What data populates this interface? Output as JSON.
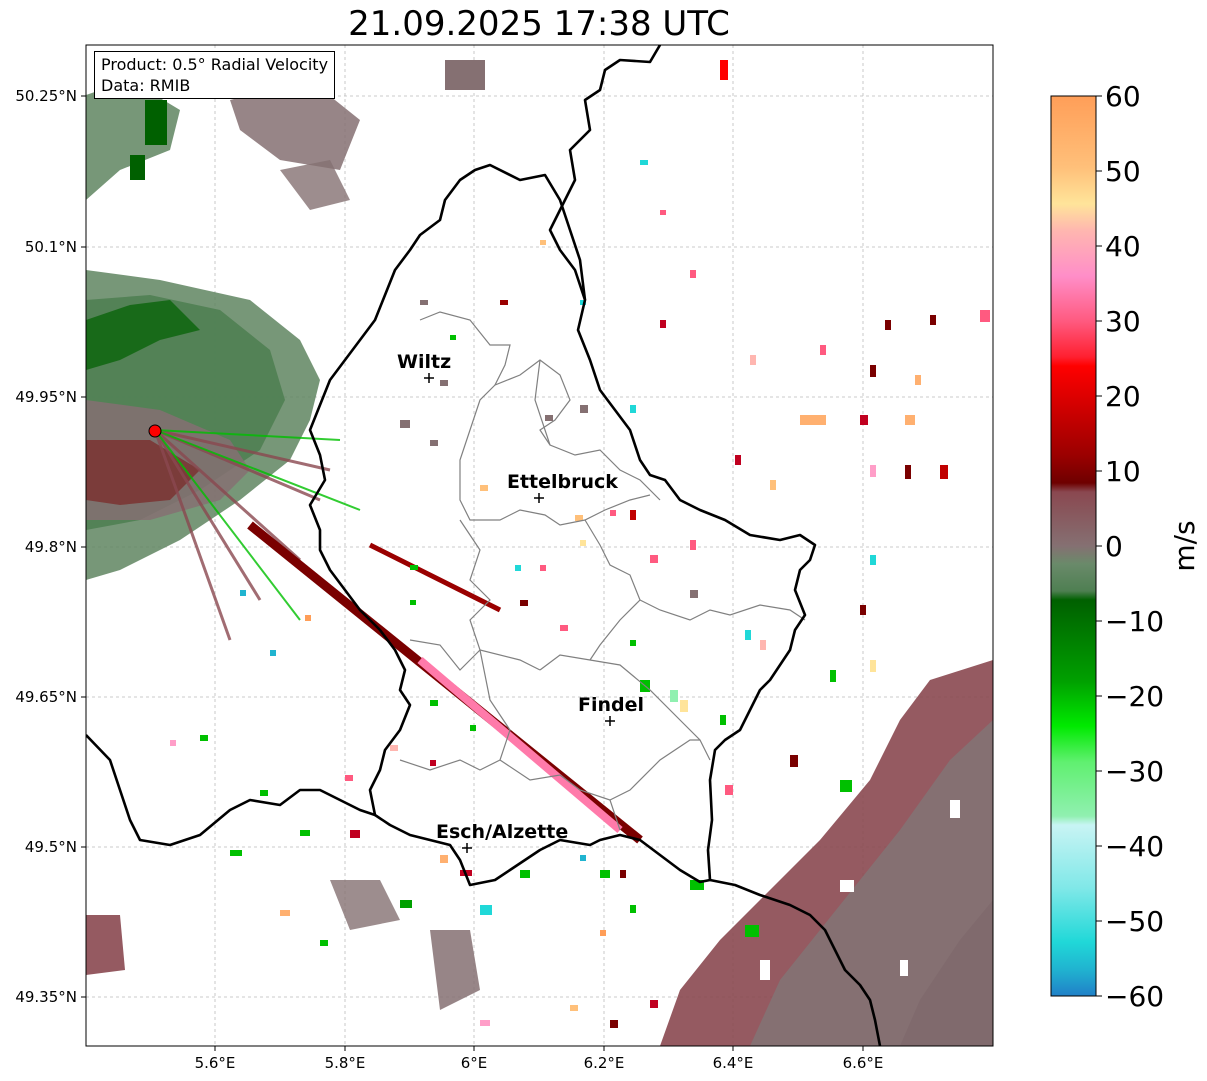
{
  "title": "21.09.2025 17:38 UTC",
  "info": {
    "product": "Product: 0.5° Radial Velocity",
    "source": "Data: RMIB"
  },
  "axes": {
    "lon_ticks": [
      "5.6°E",
      "5.8°E",
      "6°E",
      "6.2°E",
      "6.4°E",
      "6.6°E"
    ],
    "lat_ticks": [
      "50.25°N",
      "50.1°N",
      "49.95°N",
      "49.8°N",
      "49.65°N",
      "49.5°N",
      "49.35°N"
    ]
  },
  "cities": [
    {
      "name": "Wiltz"
    },
    {
      "name": "Ettelbruck"
    },
    {
      "name": "Findel"
    },
    {
      "name": "Esch/Alzette"
    }
  ],
  "colorbar": {
    "label": "m/s",
    "ticks": [
      "60",
      "50",
      "40",
      "30",
      "20",
      "10",
      "0",
      "−10",
      "−20",
      "−30",
      "−40",
      "−50",
      "−60"
    ],
    "range": [
      -60,
      60
    ]
  },
  "colors": {
    "border": "#000000",
    "districts": "#808080",
    "grid": "#bbbbbb",
    "radar_site": "#ff0000",
    "zero_velocity": "#7f6e70",
    "away_dark": "#7a0000",
    "toward_green": "#00c000"
  }
}
